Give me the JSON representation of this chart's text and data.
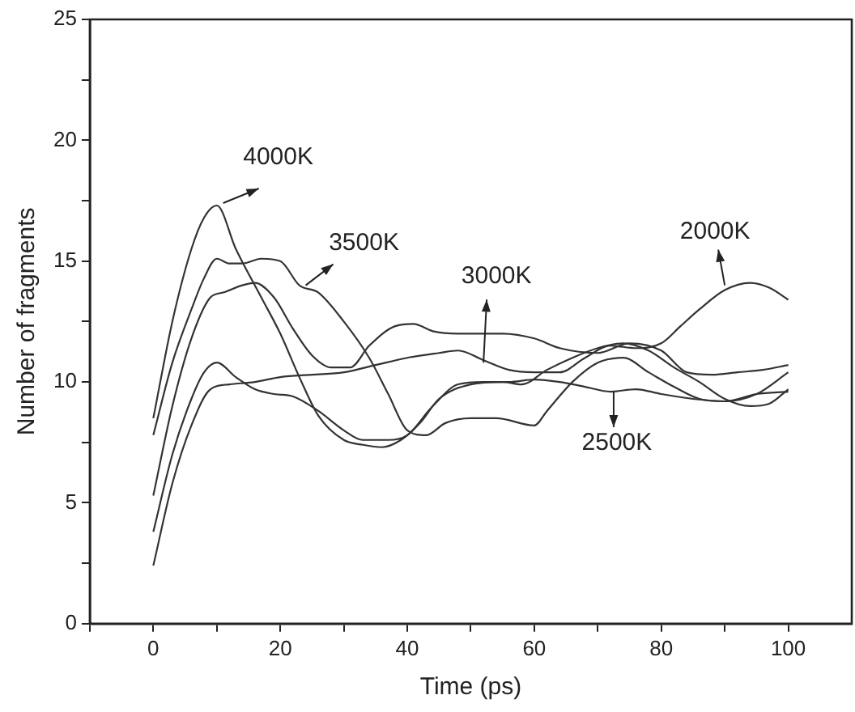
{
  "chart_data": {
    "type": "line",
    "xlabel": "Time (ps)",
    "ylabel": "Number of fragments",
    "xlim": [
      -10,
      110
    ],
    "ylim": [
      0,
      25
    ],
    "xticks": [
      {
        "value": -10,
        "label": null
      },
      0,
      {
        "value": 10,
        "label": null
      },
      20,
      {
        "value": 30,
        "label": null
      },
      40,
      {
        "value": 50,
        "label": null
      },
      60,
      {
        "value": 70,
        "label": null
      },
      80,
      {
        "value": 90,
        "label": null
      },
      100
    ],
    "yticks": [
      0,
      {
        "value": 2.5,
        "label": null
      },
      5,
      {
        "value": 7.5,
        "label": null
      },
      10,
      {
        "value": 12.5,
        "label": null
      },
      15,
      {
        "value": 17.5,
        "label": null
      },
      20,
      {
        "value": 22.5,
        "label": null
      },
      25
    ],
    "grid": false,
    "legend": false,
    "marker": "none",
    "line_style": "solid",
    "series": [
      {
        "color": "#333333",
        "x": [
          0,
          3,
          6,
          8,
          10,
          13,
          17,
          20,
          23,
          26,
          30,
          33,
          36,
          39,
          42,
          45,
          50,
          55,
          58,
          62,
          66,
          70,
          74,
          78,
          82,
          86,
          90,
          94,
          97,
          100
        ],
        "values": [
          8.5,
          12.5,
          15.5,
          16.8,
          17.3,
          15.5,
          13.5,
          12,
          10.2,
          8.6,
          7.6,
          7.4,
          7.3,
          7.6,
          8.3,
          9.3,
          9.9,
          10,
          9.9,
          10.5,
          11,
          11.4,
          11.6,
          11.3,
          10.6,
          10,
          9.3,
          9,
          9.1,
          9.7
        ]
      },
      {
        "color": "#333333",
        "x": [
          0,
          3,
          6,
          8,
          10,
          12,
          14,
          17,
          20,
          23,
          26,
          30,
          34,
          37,
          40,
          43,
          46,
          50,
          54,
          60,
          62,
          66,
          70,
          74,
          78,
          82,
          86,
          90,
          95,
          100
        ],
        "values": [
          7.8,
          10.8,
          13,
          14.3,
          15.1,
          14.9,
          14.9,
          15.1,
          15,
          14,
          13.7,
          12.5,
          11,
          9.5,
          8,
          7.8,
          8.3,
          8.5,
          8.5,
          8.2,
          8.8,
          10,
          10.8,
          11,
          10.4,
          9.8,
          9.3,
          9.2,
          9.5,
          10.4
        ]
      },
      {
        "color": "#333333",
        "x": [
          0,
          3,
          6,
          9,
          11,
          14,
          16,
          19,
          22,
          25,
          28,
          31,
          34,
          38,
          41,
          44,
          48,
          55,
          60,
          64,
          70,
          75,
          80,
          84,
          88,
          92,
          96,
          100
        ],
        "values": [
          5.3,
          9,
          11.8,
          13.5,
          13.7,
          14,
          14.1,
          13.5,
          12.2,
          11.1,
          10.6,
          10.6,
          11.5,
          12.3,
          12.4,
          12.1,
          12,
          12,
          11.8,
          11.4,
          11.2,
          11.6,
          11.3,
          10.4,
          10.3,
          10.4,
          10.5,
          10.7
        ]
      },
      {
        "color": "#333333",
        "x": [
          0,
          3,
          6,
          8,
          10,
          13,
          16,
          19,
          22,
          26,
          30,
          33,
          37,
          40,
          44,
          48,
          52,
          56,
          60,
          64,
          68,
          72,
          76,
          80,
          85,
          90,
          95,
          100
        ],
        "values": [
          3.8,
          7,
          9.3,
          10.4,
          10.8,
          10.2,
          9.7,
          9.5,
          9.4,
          8.8,
          8,
          7.6,
          7.6,
          7.8,
          9,
          9.9,
          10,
          10,
          10.1,
          10,
          9.8,
          9.6,
          9.7,
          9.5,
          9.3,
          9.2,
          9.5,
          9.6
        ]
      },
      {
        "color": "#333333",
        "x": [
          0,
          3,
          6,
          9,
          12,
          16,
          20,
          25,
          30,
          35,
          40,
          45,
          48,
          52,
          56,
          60,
          64,
          68,
          72,
          76,
          80,
          83,
          86,
          90,
          94,
          97,
          100
        ],
        "values": [
          2.4,
          5.8,
          8.2,
          9.7,
          9.9,
          10,
          10.2,
          10.3,
          10.4,
          10.7,
          11,
          11.2,
          11.3,
          10.9,
          10.5,
          10.4,
          10.4,
          11,
          11.5,
          11.4,
          11.6,
          12.3,
          13,
          13.8,
          14.1,
          13.9,
          13.4
        ]
      }
    ],
    "annotations": [
      {
        "text": "4000K",
        "x": 11,
        "y": 17.4
      },
      {
        "text": "3500K",
        "x": 24,
        "y": 14
      },
      {
        "text": "3000K",
        "x": 52,
        "y": 10.8
      },
      {
        "text": "2000K",
        "x": 90,
        "y": 14
      },
      {
        "text": "2500K",
        "x": 72.5,
        "y": 9.6
      }
    ]
  }
}
